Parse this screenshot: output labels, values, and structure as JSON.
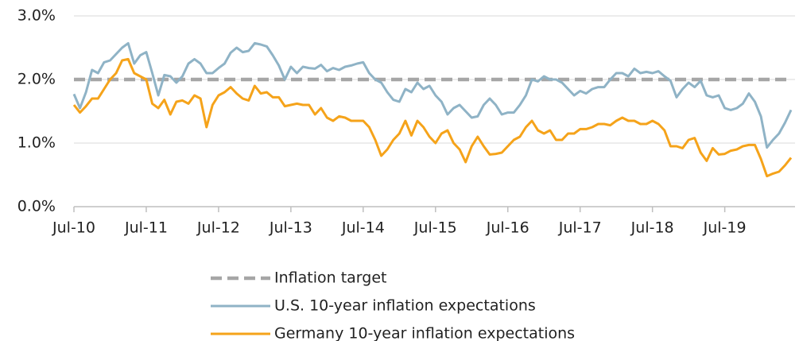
{
  "chart_data": {
    "type": "line",
    "categories": [
      "Jul-10",
      null,
      null,
      null,
      null,
      null,
      null,
      null,
      null,
      null,
      null,
      null,
      "Jul-11",
      null,
      null,
      null,
      null,
      null,
      null,
      null,
      null,
      null,
      null,
      null,
      "Jul-12",
      null,
      null,
      null,
      null,
      null,
      null,
      null,
      null,
      null,
      null,
      null,
      "Jul-13",
      null,
      null,
      null,
      null,
      null,
      null,
      null,
      null,
      null,
      null,
      null,
      "Jul-14",
      null,
      null,
      null,
      null,
      null,
      null,
      null,
      null,
      null,
      null,
      null,
      "Jul-15",
      null,
      null,
      null,
      null,
      null,
      null,
      null,
      null,
      null,
      null,
      null,
      "Jul-16",
      null,
      null,
      null,
      null,
      null,
      null,
      null,
      null,
      null,
      null,
      null,
      "Jul-17",
      null,
      null,
      null,
      null,
      null,
      null,
      null,
      null,
      null,
      null,
      null,
      "Jul-18",
      null,
      null,
      null,
      null,
      null,
      null,
      null,
      null,
      null,
      null,
      null,
      "Jul-19",
      null,
      null,
      null,
      null,
      null,
      null,
      null,
      null,
      null,
      null,
      null
    ],
    "series": [
      {
        "name": "Inflation target",
        "color": "#a6a6a6",
        "dashed": true,
        "values": [
          2,
          2,
          2,
          2,
          2,
          2,
          2,
          2,
          2,
          2,
          2,
          2,
          2,
          2,
          2,
          2,
          2,
          2,
          2,
          2,
          2,
          2,
          2,
          2,
          2,
          2,
          2,
          2,
          2,
          2,
          2,
          2,
          2,
          2,
          2,
          2,
          2,
          2,
          2,
          2,
          2,
          2,
          2,
          2,
          2,
          2,
          2,
          2,
          2,
          2,
          2,
          2,
          2,
          2,
          2,
          2,
          2,
          2,
          2,
          2,
          2,
          2,
          2,
          2,
          2,
          2,
          2,
          2,
          2,
          2,
          2,
          2,
          2,
          2,
          2,
          2,
          2,
          2,
          2,
          2,
          2,
          2,
          2,
          2,
          2,
          2,
          2,
          2,
          2,
          2,
          2,
          2,
          2,
          2,
          2,
          2,
          2,
          2,
          2,
          2,
          2,
          2,
          2,
          2,
          2,
          2,
          2,
          2,
          2,
          2,
          2,
          2,
          2,
          2,
          2,
          2,
          2,
          2,
          2,
          2
        ]
      },
      {
        "name": "U.S. 10-year inflation expectations",
        "color": "#8fb3c6",
        "values": [
          1.77,
          1.55,
          1.8,
          2.15,
          2.1,
          2.27,
          2.3,
          2.4,
          2.5,
          2.57,
          2.25,
          2.38,
          2.43,
          2.1,
          1.75,
          2.07,
          2.05,
          1.95,
          2.05,
          2.25,
          2.32,
          2.25,
          2.1,
          2.1,
          2.18,
          2.25,
          2.42,
          2.5,
          2.43,
          2.45,
          2.57,
          2.55,
          2.52,
          2.38,
          2.22,
          2.0,
          2.2,
          2.1,
          2.2,
          2.18,
          2.17,
          2.23,
          2.13,
          2.18,
          2.15,
          2.2,
          2.22,
          2.25,
          2.27,
          2.1,
          2.0,
          1.95,
          1.8,
          1.68,
          1.65,
          1.85,
          1.8,
          1.95,
          1.85,
          1.9,
          1.75,
          1.65,
          1.45,
          1.55,
          1.6,
          1.5,
          1.4,
          1.42,
          1.6,
          1.7,
          1.6,
          1.45,
          1.48,
          1.48,
          1.6,
          1.75,
          2.0,
          1.97,
          2.05,
          2.0,
          2.0,
          1.95,
          1.85,
          1.75,
          1.82,
          1.78,
          1.85,
          1.88,
          1.88,
          2.0,
          2.1,
          2.1,
          2.05,
          2.17,
          2.1,
          2.12,
          2.1,
          2.13,
          2.05,
          1.98,
          1.72,
          1.85,
          1.95,
          1.88,
          1.98,
          1.75,
          1.72,
          1.75,
          1.55,
          1.52,
          1.55,
          1.62,
          1.78,
          1.65,
          1.42,
          0.93,
          1.05,
          1.15,
          1.32,
          1.52
        ]
      },
      {
        "name": "Germany 10-year inflation expectations",
        "color": "#f5a31a",
        "values": [
          1.6,
          1.48,
          1.58,
          1.7,
          1.7,
          1.85,
          2.0,
          2.1,
          2.3,
          2.32,
          2.1,
          2.05,
          2.0,
          1.62,
          1.55,
          1.68,
          1.45,
          1.65,
          1.67,
          1.62,
          1.75,
          1.7,
          1.25,
          1.6,
          1.75,
          1.8,
          1.88,
          1.78,
          1.7,
          1.67,
          1.9,
          1.78,
          1.8,
          1.72,
          1.72,
          1.58,
          1.6,
          1.62,
          1.6,
          1.6,
          1.45,
          1.55,
          1.4,
          1.35,
          1.42,
          1.4,
          1.35,
          1.35,
          1.35,
          1.25,
          1.05,
          0.8,
          0.9,
          1.05,
          1.15,
          1.35,
          1.12,
          1.35,
          1.25,
          1.1,
          1.0,
          1.15,
          1.2,
          1.0,
          0.9,
          0.7,
          0.95,
          1.1,
          0.95,
          0.82,
          0.83,
          0.85,
          0.95,
          1.05,
          1.1,
          1.25,
          1.35,
          1.2,
          1.15,
          1.2,
          1.05,
          1.05,
          1.15,
          1.15,
          1.22,
          1.22,
          1.25,
          1.3,
          1.3,
          1.28,
          1.35,
          1.4,
          1.35,
          1.35,
          1.3,
          1.3,
          1.35,
          1.3,
          1.2,
          0.95,
          0.95,
          0.92,
          1.05,
          1.08,
          0.85,
          0.72,
          0.92,
          0.82,
          0.83,
          0.88,
          0.9,
          0.95,
          0.97,
          0.97,
          0.75,
          0.48,
          0.52,
          0.55,
          0.65,
          0.77
        ]
      }
    ],
    "ylim": [
      0,
      3
    ],
    "yticks": [
      {
        "value": 0,
        "label": "0.0%"
      },
      {
        "value": 1,
        "label": "1.0%"
      },
      {
        "value": 2,
        "label": "2.0%"
      },
      {
        "value": 3,
        "label": "3.0%"
      }
    ],
    "grid": true,
    "legend": "bottom"
  }
}
